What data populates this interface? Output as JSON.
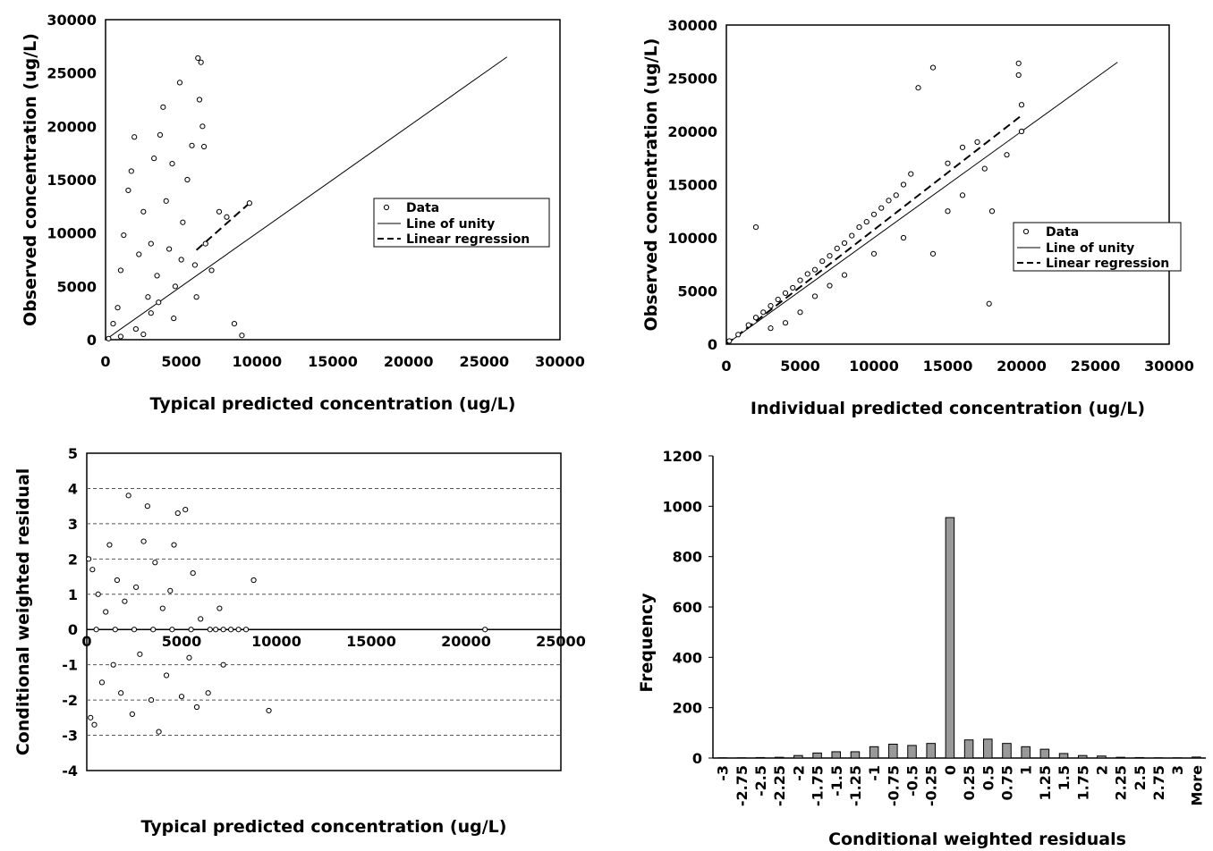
{
  "chart_data": [
    {
      "type": "scatter",
      "xlabel": "Typical predicted concentration (ug/L)",
      "ylabel": "Observed concentration (ug/L)",
      "xlim": [
        0,
        30000
      ],
      "ylim": [
        0,
        30000
      ],
      "xticks": [
        "0",
        "5000",
        "10000",
        "15000",
        "20000",
        "25000",
        "30000"
      ],
      "yticks": [
        "0",
        "5000",
        "10000",
        "15000",
        "20000",
        "25000",
        "30000"
      ],
      "legend": {
        "position": "right-center",
        "entries": [
          "Data",
          "Line of unity",
          "Linear regression"
        ]
      },
      "unity_line": [
        [
          0,
          0
        ],
        [
          26500,
          26500
        ]
      ],
      "regression_line": [
        [
          6000,
          8400
        ],
        [
          9500,
          12800
        ]
      ],
      "series": [
        {
          "name": "Data",
          "points": [
            [
              200,
              100
            ],
            [
              500,
              1500
            ],
            [
              800,
              3000
            ],
            [
              1000,
              6500
            ],
            [
              1200,
              9800
            ],
            [
              1500,
              14000
            ],
            [
              1700,
              15800
            ],
            [
              1900,
              19000
            ],
            [
              2200,
              8000
            ],
            [
              2500,
              12000
            ],
            [
              2800,
              4000
            ],
            [
              3000,
              9000
            ],
            [
              3200,
              17000
            ],
            [
              3400,
              6000
            ],
            [
              3600,
              19200
            ],
            [
              3800,
              21800
            ],
            [
              4000,
              13000
            ],
            [
              4200,
              8500
            ],
            [
              4400,
              16500
            ],
            [
              4600,
              5000
            ],
            [
              4900,
              24100
            ],
            [
              5100,
              11000
            ],
            [
              5400,
              15000
            ],
            [
              5700,
              18200
            ],
            [
              5900,
              7000
            ],
            [
              6100,
              26400
            ],
            [
              6300,
              26000
            ],
            [
              6200,
              22500
            ],
            [
              6400,
              20000
            ],
            [
              6500,
              18100
            ],
            [
              6600,
              9000
            ],
            [
              7000,
              6500
            ],
            [
              7500,
              12000
            ],
            [
              8000,
              11500
            ],
            [
              8500,
              1500
            ],
            [
              9000,
              400
            ],
            [
              9500,
              12800
            ],
            [
              3000,
              2500
            ],
            [
              2000,
              1000
            ],
            [
              3500,
              3500
            ],
            [
              4500,
              2000
            ],
            [
              1000,
              300
            ],
            [
              2500,
              500
            ],
            [
              6000,
              4000
            ],
            [
              5000,
              7500
            ]
          ]
        }
      ]
    },
    {
      "type": "scatter",
      "xlabel": "Individual predicted concentration (ug/L)",
      "ylabel": "Observed concentration (ug/L)",
      "xlim": [
        0,
        30000
      ],
      "ylim": [
        0,
        30000
      ],
      "xticks": [
        "0",
        "5000",
        "10000",
        "15000",
        "20000",
        "25000",
        "30000"
      ],
      "yticks": [
        "0",
        "5000",
        "10000",
        "15000",
        "20000",
        "25000",
        "30000"
      ],
      "legend": {
        "position": "right-center",
        "entries": [
          "Data",
          "Line of unity",
          "Linear regression"
        ]
      },
      "unity_line": [
        [
          0,
          0
        ],
        [
          26500,
          26500
        ]
      ],
      "regression_line": [
        [
          0,
          0
        ],
        [
          20000,
          21500
        ]
      ],
      "series": [
        {
          "name": "Data",
          "points": [
            [
              200,
              300
            ],
            [
              800,
              900
            ],
            [
              1500,
              1800
            ],
            [
              2000,
              2500
            ],
            [
              2500,
              3000
            ],
            [
              3000,
              3600
            ],
            [
              3500,
              4200
            ],
            [
              4000,
              4800
            ],
            [
              4500,
              5300
            ],
            [
              5000,
              6000
            ],
            [
              5500,
              6600
            ],
            [
              6000,
              7000
            ],
            [
              6500,
              7800
            ],
            [
              7000,
              8300
            ],
            [
              7500,
              9000
            ],
            [
              8000,
              9500
            ],
            [
              8500,
              10200
            ],
            [
              9000,
              11000
            ],
            [
              9500,
              11500
            ],
            [
              10000,
              12200
            ],
            [
              10500,
              12800
            ],
            [
              11000,
              13500
            ],
            [
              11500,
              14000
            ],
            [
              12000,
              15000
            ],
            [
              12500,
              16000
            ],
            [
              13000,
              24100
            ],
            [
              14000,
              26000
            ],
            [
              15000,
              17000
            ],
            [
              16000,
              18500
            ],
            [
              17000,
              19000
            ],
            [
              17800,
              3800
            ],
            [
              18000,
              12500
            ],
            [
              19000,
              17800
            ],
            [
              19800,
              26400
            ],
            [
              19800,
              25300
            ],
            [
              20000,
              22500
            ],
            [
              20000,
              20000
            ],
            [
              2000,
              11000
            ],
            [
              4000,
              2000
            ],
            [
              6000,
              4500
            ],
            [
              8000,
              6500
            ],
            [
              10000,
              8500
            ],
            [
              12000,
              10000
            ],
            [
              14000,
              8500
            ],
            [
              15000,
              12500
            ],
            [
              16000,
              14000
            ],
            [
              17500,
              16500
            ],
            [
              5000,
              3000
            ],
            [
              3000,
              1500
            ],
            [
              7000,
              5500
            ]
          ]
        }
      ]
    },
    {
      "type": "scatter",
      "xlabel": "Typical predicted concentration (ug/L)",
      "ylabel": "Conditional weighted residual",
      "xlim": [
        0,
        25000
      ],
      "ylim": [
        -4,
        5
      ],
      "xticks": [
        "0",
        "5000",
        "10000",
        "15000",
        "20000",
        "25000"
      ],
      "yticks": [
        "-4",
        "-3",
        "-2",
        "-1",
        "0",
        "1",
        "2",
        "3",
        "4",
        "5"
      ],
      "gridlines_y": [
        -3,
        -2,
        -1,
        1,
        2,
        3,
        4
      ],
      "series": [
        {
          "name": "",
          "points": [
            [
              100,
              2
            ],
            [
              200,
              -2.5
            ],
            [
              300,
              1.7
            ],
            [
              400,
              -2.7
            ],
            [
              600,
              1
            ],
            [
              800,
              -1.5
            ],
            [
              1000,
              0.5
            ],
            [
              1200,
              2.4
            ],
            [
              1400,
              -1
            ],
            [
              1600,
              1.4
            ],
            [
              1800,
              -1.8
            ],
            [
              2000,
              0.8
            ],
            [
              2200,
              3.8
            ],
            [
              2400,
              -2.4
            ],
            [
              2600,
              1.2
            ],
            [
              2800,
              -0.7
            ],
            [
              3000,
              2.5
            ],
            [
              3200,
              3.5
            ],
            [
              3400,
              -2
            ],
            [
              3600,
              1.9
            ],
            [
              3800,
              -2.9
            ],
            [
              4000,
              0.6
            ],
            [
              4200,
              -1.3
            ],
            [
              4400,
              1.1
            ],
            [
              4600,
              2.4
            ],
            [
              4800,
              3.3
            ],
            [
              5000,
              -1.9
            ],
            [
              5200,
              3.4
            ],
            [
              5400,
              -0.8
            ],
            [
              5600,
              1.6
            ],
            [
              5800,
              -2.2
            ],
            [
              6000,
              0.3
            ],
            [
              6400,
              -1.8
            ],
            [
              7000,
              0.6
            ],
            [
              7200,
              -1
            ],
            [
              7600,
              0
            ],
            [
              8000,
              0
            ],
            [
              8400,
              0
            ],
            [
              8800,
              1.4
            ],
            [
              9600,
              -2.3
            ],
            [
              21000,
              0
            ],
            [
              500,
              0
            ],
            [
              1500,
              0
            ],
            [
              2500,
              0
            ],
            [
              3500,
              0
            ],
            [
              4500,
              0
            ],
            [
              5500,
              0
            ],
            [
              6500,
              0
            ],
            [
              6800,
              0
            ],
            [
              7200,
              0
            ]
          ]
        }
      ]
    },
    {
      "type": "bar",
      "xlabel": "Conditional weighted residuals",
      "ylabel": "Frequency",
      "ylim": [
        0,
        1200
      ],
      "yticks": [
        "0",
        "200",
        "400",
        "600",
        "800",
        "1000",
        "1200"
      ],
      "categories": [
        "-3",
        "-2.75",
        "-2.5",
        "-2.25",
        "-2",
        "-1.75",
        "-1.5",
        "-1.25",
        "-1",
        "-0.75",
        "-0.5",
        "-0.25",
        "0",
        "0.25",
        "0.5",
        "0.75",
        "1",
        "1.25",
        "1.5",
        "1.75",
        "2",
        "2.25",
        "2.5",
        "2.75",
        "3",
        "More"
      ],
      "values": [
        1,
        1,
        2,
        3,
        10,
        20,
        25,
        25,
        45,
        55,
        50,
        58,
        955,
        72,
        75,
        58,
        45,
        35,
        18,
        10,
        8,
        3,
        2,
        1,
        1,
        4
      ],
      "bar_color": "#999999"
    }
  ]
}
